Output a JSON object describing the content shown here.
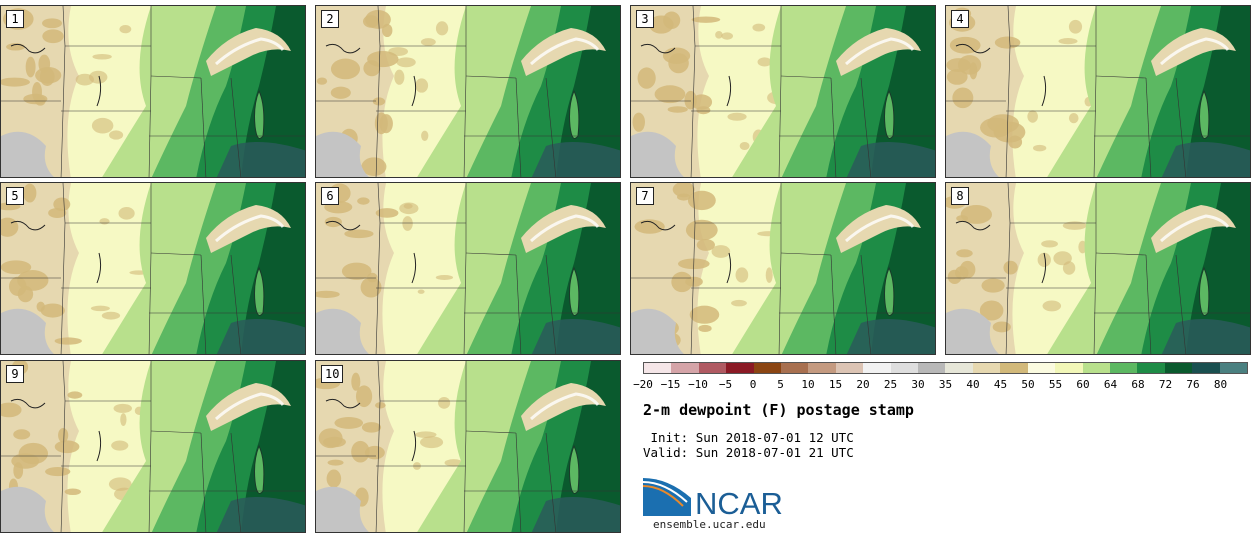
{
  "title": "2-m dewpoint (F) postage stamp",
  "init_label": " Init:",
  "init_value": "Sun 2018-07-01 12 UTC",
  "valid_label": "Valid:",
  "valid_value": "Sun 2018-07-01 21 UTC",
  "logo_text": "NCAR",
  "url": "ensemble.ucar.edu",
  "members": [
    "1",
    "2",
    "3",
    "4",
    "5",
    "6",
    "7",
    "8",
    "9",
    "10"
  ],
  "colorbar": {
    "ticks": [
      "−20",
      "−15",
      "−10",
      "−5",
      "0",
      "5",
      "10",
      "15",
      "20",
      "25",
      "30",
      "35",
      "40",
      "45",
      "50",
      "55",
      "60",
      "64",
      "68",
      "72",
      "76",
      "80"
    ],
    "colors": [
      "#f5e6e8",
      "#d5a4a8",
      "#b05a62",
      "#8b1a25",
      "#8b4513",
      "#a87050",
      "#c49a80",
      "#dcc4b4",
      "#f2f2f2",
      "#dedede",
      "#b8b8b8",
      "#e6e6d8",
      "#e6d8b0",
      "#d2b97a",
      "#fbfbe0",
      "#f2f7b8",
      "#b8e08c",
      "#5cb862",
      "#1e8c46",
      "#0a5a2e",
      "#1a5050",
      "#4a8080"
    ]
  },
  "colors": {
    "dry_tan": "#d2b97a",
    "light_tan": "#e6d8b0",
    "gray": "#c4c4c4",
    "pale_yellow": "#f6f9c4",
    "light_green": "#b8e08c",
    "mid_green": "#5cb862",
    "dark_green": "#1e8c46",
    "darkest_green": "#0a5a2e",
    "teal": "#2a5a5a"
  }
}
